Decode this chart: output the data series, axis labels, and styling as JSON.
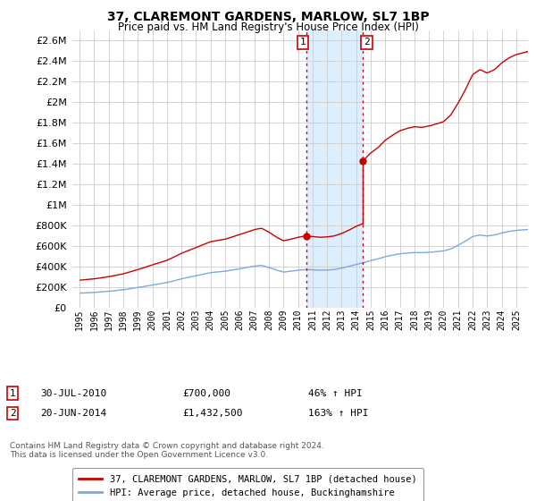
{
  "title": "37, CLAREMONT GARDENS, MARLOW, SL7 1BP",
  "subtitle": "Price paid vs. HM Land Registry's House Price Index (HPI)",
  "legend_line1": "37, CLAREMONT GARDENS, MARLOW, SL7 1BP (detached house)",
  "legend_line2": "HPI: Average price, detached house, Buckinghamshire",
  "transaction1_date": "30-JUL-2010",
  "transaction1_price": "£700,000",
  "transaction1_hpi": "46% ↑ HPI",
  "transaction2_date": "20-JUN-2014",
  "transaction2_price": "£1,432,500",
  "transaction2_hpi": "163% ↑ HPI",
  "footer": "Contains HM Land Registry data © Crown copyright and database right 2024.\nThis data is licensed under the Open Government Licence v3.0.",
  "ylim": [
    0,
    2700000
  ],
  "yticks": [
    0,
    200000,
    400000,
    600000,
    800000,
    1000000,
    1200000,
    1400000,
    1600000,
    1800000,
    2000000,
    2200000,
    2400000,
    2600000
  ],
  "transaction1_x": 2010.58,
  "transaction2_x": 2014.47,
  "transaction1_y": 700000,
  "transaction2_y": 1432500,
  "vline_color": "#cc0000",
  "highlight_color": "#ddeeff",
  "red_line_color": "#cc0000",
  "blue_line_color": "#7aaadd",
  "background_color": "#ffffff",
  "grid_color": "#cccccc",
  "xlim_left": 1994.5,
  "xlim_right": 2025.8
}
